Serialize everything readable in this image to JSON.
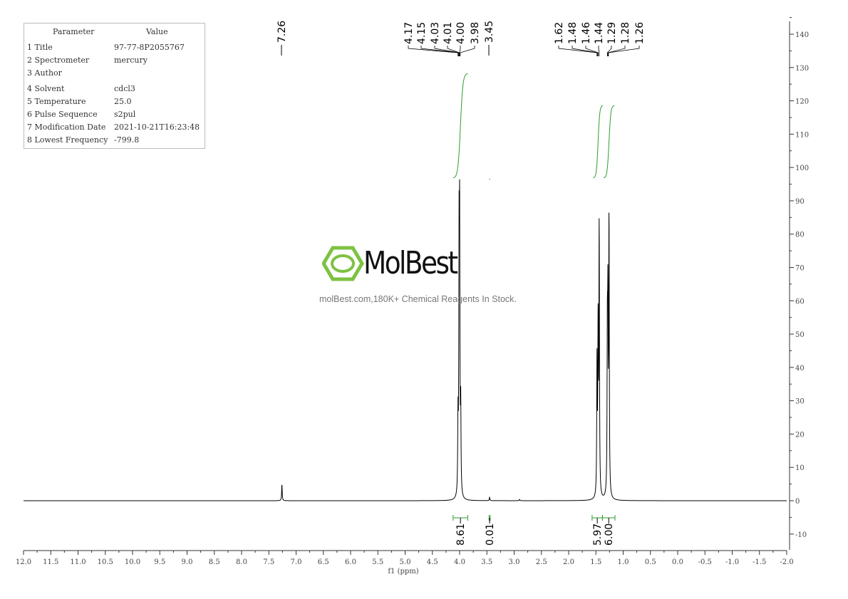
{
  "parameters": {
    "headers": [
      "Parameter",
      "Value"
    ],
    "rows": [
      {
        "name": "1 Title",
        "value": "97-77-8P2055767"
      },
      {
        "name": "2 Spectrometer",
        "value": "mercury"
      },
      {
        "name": "3 Author",
        "value": ""
      },
      {
        "name": "4 Solvent",
        "value": "cdcl3"
      },
      {
        "name": "5 Temperature",
        "value": "25.0"
      },
      {
        "name": "6 Pulse Sequence",
        "value": "s2pul"
      },
      {
        "name": "7 Modification Date",
        "value": "2021-10-21T16:23:48"
      },
      {
        "name": "8 Lowest Frequency",
        "value": "-799.8"
      }
    ]
  },
  "watermark": {
    "brand": "MolBest",
    "tagline": "molBest.com,180K+ Chemical Reagents In Stock.",
    "color": "#7dc242"
  },
  "chart_data": {
    "type": "line",
    "xlabel": "f1 (ppm)",
    "xlim": [
      12.0,
      -2.0
    ],
    "ylim": [
      -15,
      145
    ],
    "x_ticks": [
      "12.0",
      "11.5",
      "11.0",
      "10.5",
      "10.0",
      "9.5",
      "9.0",
      "8.5",
      "8.0",
      "7.5",
      "7.0",
      "6.5",
      "6.0",
      "5.5",
      "5.0",
      "4.5",
      "4.0",
      "3.5",
      "3.0",
      "2.5",
      "2.0",
      "1.5",
      "1.0",
      "0.5",
      "0.0",
      "-0.5",
      "-1.0",
      "-1.5",
      "-2.0"
    ],
    "y_ticks": [
      "-10",
      "0",
      "10",
      "20",
      "30",
      "40",
      "50",
      "60",
      "70",
      "80",
      "90",
      "100",
      "110",
      "120",
      "130",
      "140"
    ],
    "y_axis_position": "right",
    "line_color": "#000000",
    "integral_color": "#2e9e2e",
    "peaks": [
      {
        "ppm": 7.26,
        "height": 5
      },
      {
        "ppm": 4.03,
        "height": 22
      },
      {
        "ppm": 4.01,
        "height": 70
      },
      {
        "ppm": 4.0,
        "height": 75
      },
      {
        "ppm": 3.98,
        "height": 25
      },
      {
        "ppm": 3.45,
        "height": 1
      },
      {
        "ppm": 2.9,
        "height": 0.4
      },
      {
        "ppm": 1.48,
        "height": 40
      },
      {
        "ppm": 1.46,
        "height": 50
      },
      {
        "ppm": 1.44,
        "height": 82
      },
      {
        "ppm": 1.29,
        "height": 45
      },
      {
        "ppm": 1.28,
        "height": 52
      },
      {
        "ppm": 1.26,
        "height": 84
      }
    ],
    "peak_labels": [
      {
        "group": [
          {
            "text": "7.26",
            "ppm": 7.26
          }
        ]
      },
      {
        "group": [
          {
            "text": "4.17",
            "ppm": 4.03
          },
          {
            "text": "4.15",
            "ppm": 4.02
          },
          {
            "text": "4.03",
            "ppm": 4.01
          },
          {
            "text": "4.01",
            "ppm": 4.005
          },
          {
            "text": "4.00",
            "ppm": 4.0
          },
          {
            "text": "3.98",
            "ppm": 3.99
          }
        ]
      },
      {
        "group": [
          {
            "text": "3.45",
            "ppm": 3.45
          }
        ]
      },
      {
        "group": [
          {
            "text": "1.62",
            "ppm": 1.48
          },
          {
            "text": "1.48",
            "ppm": 1.47
          },
          {
            "text": "1.46",
            "ppm": 1.46
          },
          {
            "text": "1.44",
            "ppm": 1.44
          }
        ]
      },
      {
        "group": [
          {
            "text": "1.29",
            "ppm": 1.29
          },
          {
            "text": "1.28",
            "ppm": 1.28
          },
          {
            "text": "1.26",
            "ppm": 1.27
          }
        ]
      }
    ],
    "integrals": [
      {
        "from": 4.12,
        "to": 3.85,
        "value": "8.61"
      },
      {
        "from": 3.46,
        "to": 3.44,
        "value": "0.01"
      },
      {
        "from": 1.57,
        "to": 1.38,
        "value": "5.97"
      },
      {
        "from": 1.38,
        "to": 1.15,
        "value": "6.00"
      }
    ]
  }
}
